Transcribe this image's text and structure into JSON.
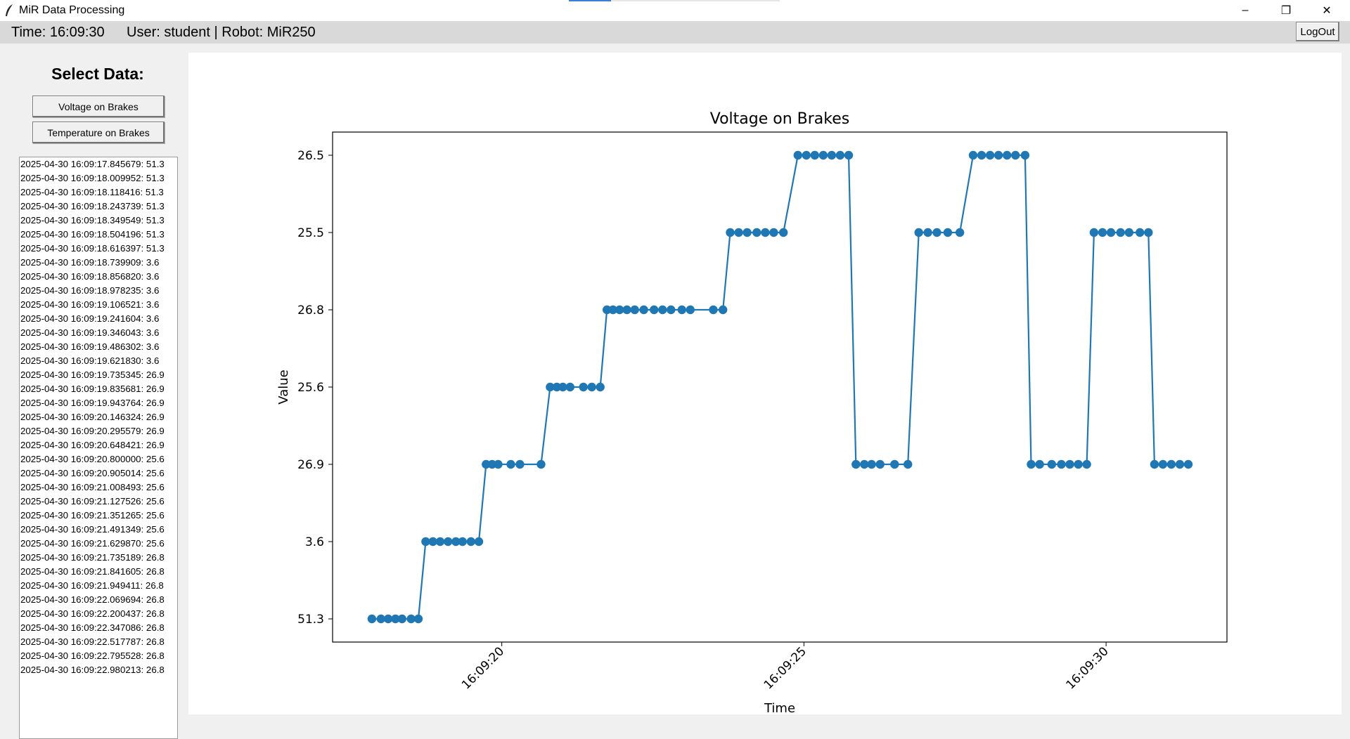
{
  "window": {
    "title": "MiR Data Processing",
    "minimize": "–",
    "restore": "❐",
    "close": "✕"
  },
  "status": {
    "time": "Time: 16:09:30",
    "user": "User: student | Robot: MiR250",
    "logout": "LogOut"
  },
  "sidebar": {
    "title": "Select Data:",
    "buttons": [
      "Voltage on Brakes",
      "Temperature on Brakes"
    ],
    "list": [
      "2025-04-30 16:09:17.845679: 51.3",
      "2025-04-30 16:09:18.009952: 51.3",
      "2025-04-30 16:09:18.118416: 51.3",
      "2025-04-30 16:09:18.243739: 51.3",
      "2025-04-30 16:09:18.349549: 51.3",
      "2025-04-30 16:09:18.504196: 51.3",
      "2025-04-30 16:09:18.616397: 51.3",
      "2025-04-30 16:09:18.739909: 3.6",
      "2025-04-30 16:09:18.856820: 3.6",
      "2025-04-30 16:09:18.978235: 3.6",
      "2025-04-30 16:09:19.106521: 3.6",
      "2025-04-30 16:09:19.241604: 3.6",
      "2025-04-30 16:09:19.346043: 3.6",
      "2025-04-30 16:09:19.486302: 3.6",
      "2025-04-30 16:09:19.621830: 3.6",
      "2025-04-30 16:09:19.735345: 26.9",
      "2025-04-30 16:09:19.835681: 26.9",
      "2025-04-30 16:09:19.943764: 26.9",
      "2025-04-30 16:09:20.146324: 26.9",
      "2025-04-30 16:09:20.295579: 26.9",
      "2025-04-30 16:09:20.648421: 26.9",
      "2025-04-30 16:09:20.800000: 25.6",
      "2025-04-30 16:09:20.905014: 25.6",
      "2025-04-30 16:09:21.008493: 25.6",
      "2025-04-30 16:09:21.127526: 25.6",
      "2025-04-30 16:09:21.351265: 25.6",
      "2025-04-30 16:09:21.491349: 25.6",
      "2025-04-30 16:09:21.629870: 25.6",
      "2025-04-30 16:09:21.735189: 26.8",
      "2025-04-30 16:09:21.841605: 26.8",
      "2025-04-30 16:09:21.949411: 26.8",
      "2025-04-30 16:09:22.069694: 26.8",
      "2025-04-30 16:09:22.200437: 26.8",
      "2025-04-30 16:09:22.347086: 26.8",
      "2025-04-30 16:09:22.517787: 26.8",
      "2025-04-30 16:09:22.795528: 26.8",
      "2025-04-30 16:09:22.980213: 26.8"
    ]
  },
  "colors": {
    "series": "#1f77b4"
  },
  "chart_data": {
    "type": "line",
    "title": "Voltage on Brakes",
    "xlabel": "Time",
    "ylabel": "Value",
    "y_categories": [
      "51.3",
      "3.6",
      "26.9",
      "25.6",
      "26.8",
      "25.5",
      "26.5"
    ],
    "x_ticks": [
      "16:09:20",
      "16:09:25",
      "16:09:30"
    ],
    "x_tick_seconds": [
      20,
      25,
      30
    ],
    "xlim_seconds": [
      17.2,
      32.0
    ],
    "grid": false,
    "legend": "none",
    "series": [
      {
        "points": [
          [
            17.85,
            "51.3"
          ],
          [
            18.0,
            "51.3"
          ],
          [
            18.12,
            "51.3"
          ],
          [
            18.24,
            "51.3"
          ],
          [
            18.35,
            "51.3"
          ],
          [
            18.5,
            "51.3"
          ],
          [
            18.62,
            "51.3"
          ],
          [
            18.74,
            "3.6"
          ],
          [
            18.86,
            "3.6"
          ],
          [
            18.98,
            "3.6"
          ],
          [
            19.11,
            "3.6"
          ],
          [
            19.24,
            "3.6"
          ],
          [
            19.35,
            "3.6"
          ],
          [
            19.49,
            "3.6"
          ],
          [
            19.62,
            "3.6"
          ],
          [
            19.74,
            "26.9"
          ],
          [
            19.84,
            "26.9"
          ],
          [
            19.94,
            "26.9"
          ],
          [
            20.15,
            "26.9"
          ],
          [
            20.3,
            "26.9"
          ],
          [
            20.65,
            "26.9"
          ],
          [
            20.8,
            "25.6"
          ],
          [
            20.91,
            "25.6"
          ],
          [
            21.01,
            "25.6"
          ],
          [
            21.13,
            "25.6"
          ],
          [
            21.35,
            "25.6"
          ],
          [
            21.49,
            "25.6"
          ],
          [
            21.63,
            "25.6"
          ],
          [
            21.74,
            "26.8"
          ],
          [
            21.84,
            "26.8"
          ],
          [
            21.95,
            "26.8"
          ],
          [
            22.07,
            "26.8"
          ],
          [
            22.2,
            "26.8"
          ],
          [
            22.35,
            "26.8"
          ],
          [
            22.52,
            "26.8"
          ],
          [
            22.66,
            "26.8"
          ],
          [
            22.8,
            "26.8"
          ],
          [
            22.98,
            "26.8"
          ],
          [
            23.12,
            "26.8"
          ],
          [
            23.5,
            "26.8"
          ],
          [
            23.66,
            "26.8"
          ],
          [
            23.78,
            "25.5"
          ],
          [
            23.92,
            "25.5"
          ],
          [
            24.06,
            "25.5"
          ],
          [
            24.22,
            "25.5"
          ],
          [
            24.36,
            "25.5"
          ],
          [
            24.5,
            "25.5"
          ],
          [
            24.66,
            "25.5"
          ],
          [
            24.9,
            "26.5"
          ],
          [
            25.04,
            "26.5"
          ],
          [
            25.18,
            "26.5"
          ],
          [
            25.32,
            "26.5"
          ],
          [
            25.46,
            "26.5"
          ],
          [
            25.6,
            "26.5"
          ],
          [
            25.74,
            "26.5"
          ],
          [
            25.86,
            "26.9"
          ],
          [
            26.0,
            "26.9"
          ],
          [
            26.12,
            "26.9"
          ],
          [
            26.26,
            "26.9"
          ],
          [
            26.5,
            "26.9"
          ],
          [
            26.72,
            "26.9"
          ],
          [
            26.9,
            "25.5"
          ],
          [
            27.05,
            "25.5"
          ],
          [
            27.2,
            "25.5"
          ],
          [
            27.38,
            "25.5"
          ],
          [
            27.58,
            "25.5"
          ],
          [
            27.8,
            "26.5"
          ],
          [
            27.94,
            "26.5"
          ],
          [
            28.08,
            "26.5"
          ],
          [
            28.22,
            "26.5"
          ],
          [
            28.36,
            "26.5"
          ],
          [
            28.5,
            "26.5"
          ],
          [
            28.66,
            "26.5"
          ],
          [
            28.76,
            "26.9"
          ],
          [
            28.9,
            "26.9"
          ],
          [
            29.1,
            "26.9"
          ],
          [
            29.26,
            "26.9"
          ],
          [
            29.4,
            "26.9"
          ],
          [
            29.54,
            "26.9"
          ],
          [
            29.68,
            "26.9"
          ],
          [
            29.8,
            "25.5"
          ],
          [
            29.94,
            "25.5"
          ],
          [
            30.08,
            "25.5"
          ],
          [
            30.24,
            "25.5"
          ],
          [
            30.38,
            "25.5"
          ],
          [
            30.56,
            "25.5"
          ],
          [
            30.7,
            "25.5"
          ],
          [
            30.8,
            "26.9"
          ],
          [
            30.94,
            "26.9"
          ],
          [
            31.08,
            "26.9"
          ],
          [
            31.22,
            "26.9"
          ],
          [
            31.36,
            "26.9"
          ]
        ]
      }
    ]
  }
}
